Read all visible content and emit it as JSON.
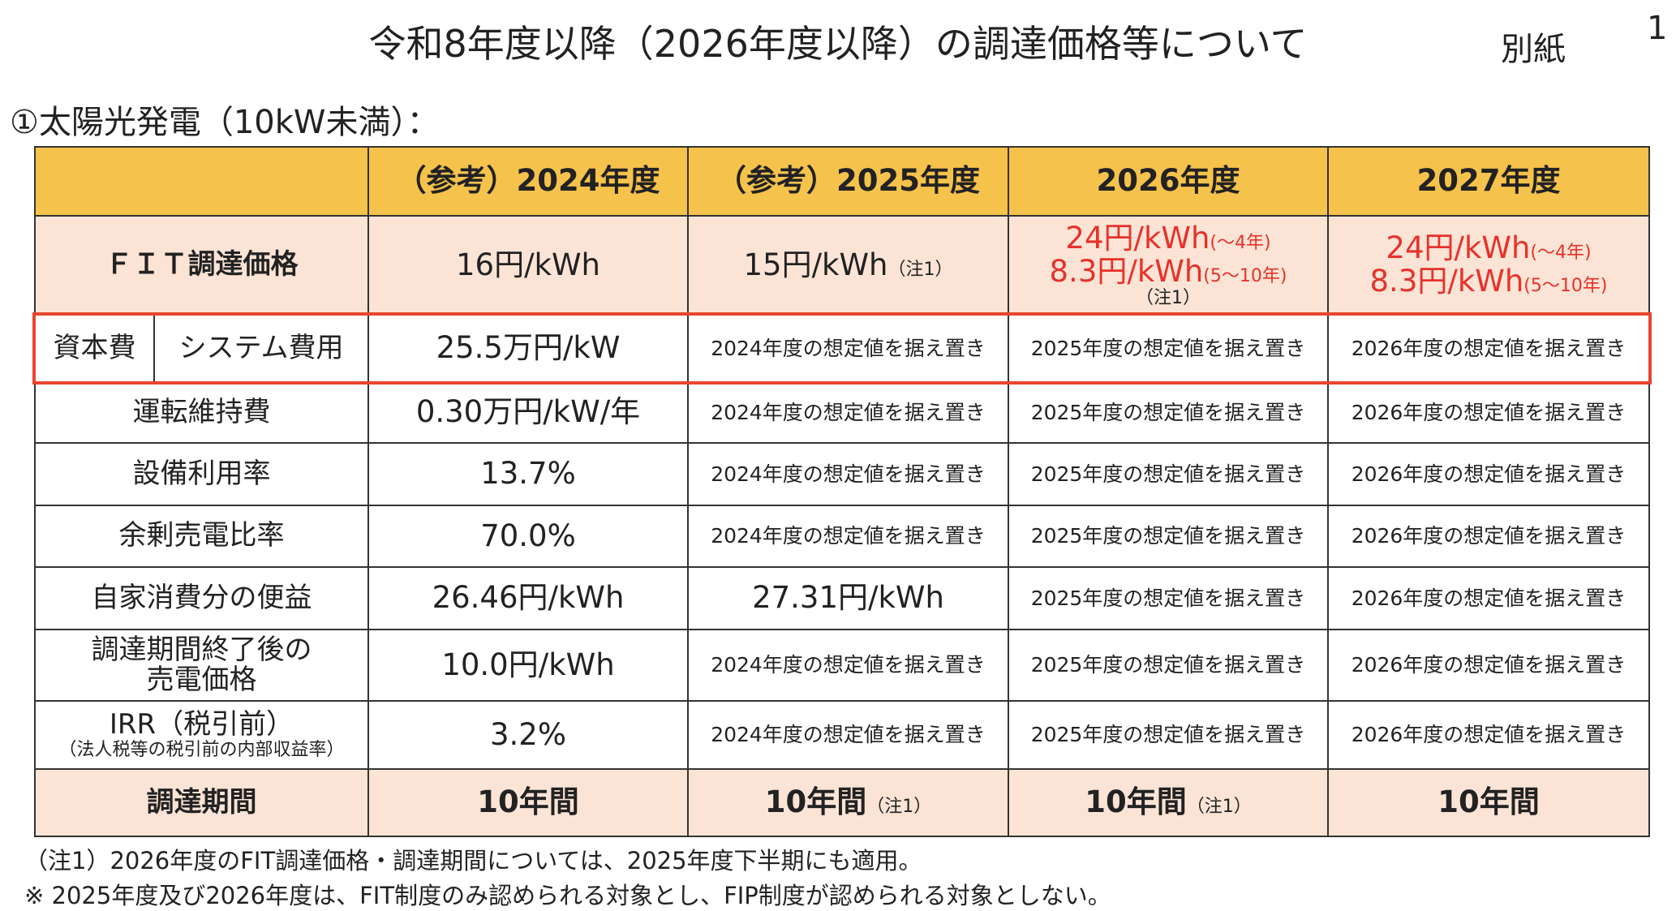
{
  "header": {
    "title": "令和8年度以降（2026年度以降）の調達価格等について",
    "attachment": "別紙",
    "page_number": "1"
  },
  "section_title": "①太陽光発電（10kW未満）：",
  "table": {
    "columns": [
      "（参考）2024年度",
      "（参考）2025年度",
      "2026年度",
      "2027年度"
    ],
    "rows": [
      {
        "label": "ＦＩＴ調達価格",
        "cells": [
          {
            "text": "16円/kWh"
          },
          {
            "text": "15円/kWh",
            "note": "（注1）"
          },
          {
            "lines": [
              {
                "text": "24円/kWh",
                "suffix": "(～4年)"
              },
              {
                "text": "8.3円/kWh",
                "suffix": "(5～10年)"
              }
            ],
            "note": "（注1）"
          },
          {
            "lines": [
              {
                "text": "24円/kWh",
                "suffix": "(～4年)"
              },
              {
                "text": "8.3円/kWh",
                "suffix": "(5～10年)"
              }
            ]
          }
        ]
      },
      {
        "label": "資本費",
        "sublabel": "システム費用",
        "cells": [
          {
            "text": "25.5万円/kW"
          },
          {
            "text": "2024年度の想定値を据え置き"
          },
          {
            "text": "2025年度の想定値を据え置き"
          },
          {
            "text": "2026年度の想定値を据え置き"
          }
        ]
      },
      {
        "label": "運転維持費",
        "cells": [
          {
            "text": "0.30万円/kW/年"
          },
          {
            "text": "2024年度の想定値を据え置き"
          },
          {
            "text": "2025年度の想定値を据え置き"
          },
          {
            "text": "2026年度の想定値を据え置き"
          }
        ]
      },
      {
        "label": "設備利用率",
        "cells": [
          {
            "text": "13.7%"
          },
          {
            "text": "2024年度の想定値を据え置き"
          },
          {
            "text": "2025年度の想定値を据え置き"
          },
          {
            "text": "2026年度の想定値を据え置き"
          }
        ]
      },
      {
        "label": "余剰売電比率",
        "cells": [
          {
            "text": "70.0%"
          },
          {
            "text": "2024年度の想定値を据え置き"
          },
          {
            "text": "2025年度の想定値を据え置き"
          },
          {
            "text": "2026年度の想定値を据え置き"
          }
        ]
      },
      {
        "label": "自家消費分の便益",
        "cells": [
          {
            "text": "26.46円/kWh"
          },
          {
            "text": "27.31円/kWh"
          },
          {
            "text": "2025年度の想定値を据え置き"
          },
          {
            "text": "2026年度の想定値を据え置き"
          }
        ]
      },
      {
        "label": "調達期間終了後の",
        "label2": "売電価格",
        "cells": [
          {
            "text": "10.0円/kWh"
          },
          {
            "text": "2024年度の想定値を据え置き"
          },
          {
            "text": "2025年度の想定値を据え置き"
          },
          {
            "text": "2026年度の想定値を据え置き"
          }
        ]
      },
      {
        "label": "IRR（税引前）",
        "label_note": "（法人税等の税引前の内部収益率）",
        "cells": [
          {
            "text": "3.2%"
          },
          {
            "text": "2024年度の想定値を据え置き"
          },
          {
            "text": "2025年度の想定値を据え置き"
          },
          {
            "text": "2026年度の想定値を据え置き"
          }
        ]
      },
      {
        "label": "調達期間",
        "cells": [
          {
            "text": "10年間"
          },
          {
            "text": "10年間",
            "note": "（注1）"
          },
          {
            "text": "10年間",
            "note": "（注1）"
          },
          {
            "text": "10年間"
          }
        ]
      }
    ]
  },
  "notes": [
    "（注1）2026年度のFIT調達価格・調達期間については、2025年度下半期にも適用。",
    "※ 2025年度及び2026年度は、FIT制度のみ認められる対象とし、FIP制度が認められる対象としない。"
  ]
}
